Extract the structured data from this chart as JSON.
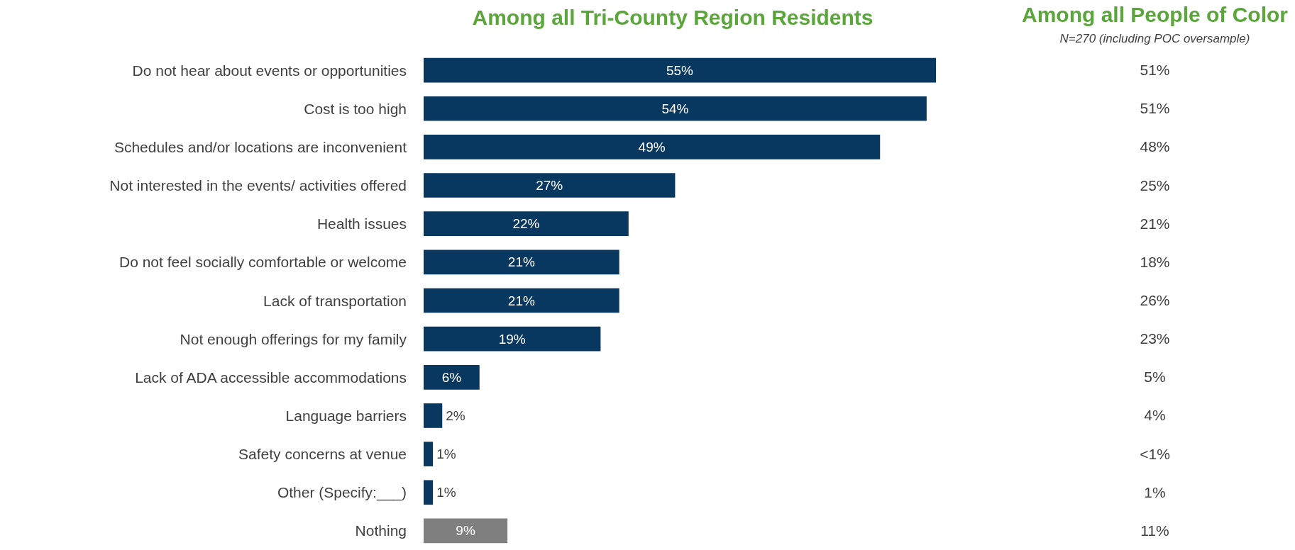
{
  "chart_data": [
    {
      "type": "bar",
      "orientation": "horizontal",
      "title": "Among all Tri-County Region Residents",
      "categories": [
        "Do not hear about events or opportunities",
        "Cost is too high",
        "Schedules and/or locations are inconvenient",
        "Not interested in the events/ activities offered",
        "Health issues",
        "Do not feel socially comfortable or welcome",
        "Lack of transportation",
        "Not enough offerings for my family",
        "Lack of ADA accessible accommodations",
        "Language barriers",
        "Safety concerns at venue",
        "Other (Specify:___)",
        "Nothing"
      ],
      "values": [
        55,
        54,
        49,
        27,
        22,
        21,
        21,
        19,
        6,
        2,
        1,
        1,
        9
      ],
      "value_labels": [
        "55%",
        "54%",
        "49%",
        "27%",
        "22%",
        "21%",
        "21%",
        "19%",
        "6%",
        "2%",
        "1%",
        "1%",
        "9%"
      ],
      "colors": [
        "#08375f",
        "#08375f",
        "#08375f",
        "#08375f",
        "#08375f",
        "#08375f",
        "#08375f",
        "#08375f",
        "#08375f",
        "#08375f",
        "#08375f",
        "#08375f",
        "#7f7f7f"
      ]
    },
    {
      "type": "other",
      "title": "Among all People of Color",
      "subtitle": "N=270 (including POC oversample)",
      "annotations": [
        "51%",
        "51%",
        "48%",
        "25%",
        "21%",
        "18%",
        "26%",
        "23%",
        "5%",
        "4%",
        "<1%",
        "1%",
        "11%"
      ]
    }
  ]
}
